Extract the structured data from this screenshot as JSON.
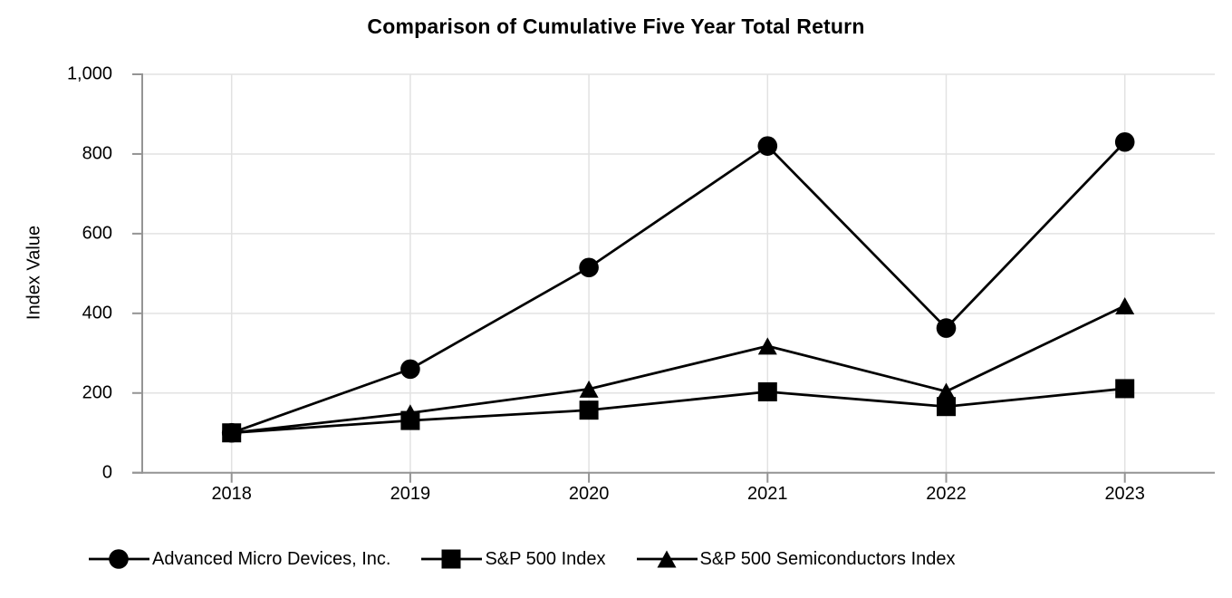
{
  "title": "Comparison of Cumulative Five Year Total Return",
  "chart_data": {
    "type": "line",
    "x": [
      "2018",
      "2019",
      "2020",
      "2021",
      "2022",
      "2023"
    ],
    "series": [
      {
        "name": "Advanced Micro Devices, Inc.",
        "marker": "circle",
        "values": [
          100,
          260,
          515,
          820,
          363,
          830
        ]
      },
      {
        "name": "S&P 500 Index",
        "marker": "square",
        "values": [
          100,
          131,
          157,
          203,
          166,
          211
        ]
      },
      {
        "name": "S&P 500 Semiconductors Index",
        "marker": "triangle",
        "values": [
          100,
          150,
          210,
          318,
          204,
          419
        ]
      }
    ],
    "xlabel": "",
    "ylabel": "Index Value",
    "ylim": [
      0,
      1000
    ],
    "y_ticks": [
      0,
      200,
      400,
      600,
      800,
      1000
    ],
    "y_tick_labels": [
      "0",
      "200",
      "400",
      "600",
      "800",
      "1,000"
    ],
    "grid": true,
    "legend_position": "bottom",
    "colors": {
      "series_color": "#000000",
      "grid_color": "#e2e2e2",
      "axis_color": "#949494",
      "background": "#ffffff",
      "text": "#000000"
    }
  }
}
